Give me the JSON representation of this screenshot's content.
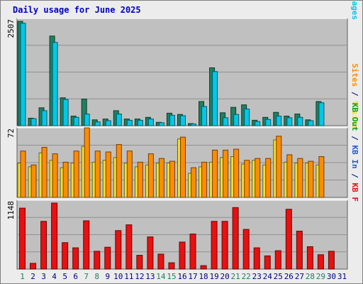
{
  "title": "Daily usage for June 2025",
  "colors": {
    "pages": "#00c8e8",
    "files": "#2090b0",
    "hits": "#208060",
    "visits": "#f0e030",
    "sites": "#ff8c00",
    "kb_in": "#2060c0",
    "kb_out": "#10a010",
    "kb_f": "#e81010",
    "weekend_day": "#208060",
    "weekday_day": "#000080",
    "panel_bg": "#c0c0c0",
    "grid": "#909090"
  },
  "chart_data": [
    {
      "type": "bar",
      "name": "hits-files-pages",
      "categories": [
        "1",
        "2",
        "3",
        "4",
        "5",
        "6",
        "7",
        "8",
        "9",
        "10",
        "11",
        "12",
        "13",
        "14",
        "15",
        "16",
        "17",
        "18",
        "19",
        "20",
        "21",
        "22",
        "23",
        "24",
        "25",
        "26",
        "27",
        "28",
        "29",
        "30",
        "31"
      ],
      "ymax_label": "2507",
      "ylim": [
        0,
        2507
      ],
      "side_label": [
        {
          "text": "Pages",
          "color_key": "pages"
        },
        {
          "text": " / ",
          "color_key": "weekday_day"
        },
        {
          "text": "Files",
          "color_key": "files"
        },
        {
          "text": " / ",
          "color_key": "weekday_day"
        },
        {
          "text": "Hits",
          "color_key": "hits"
        }
      ],
      "series": [
        {
          "name": "Hits",
          "color_key": "hits",
          "values": [
            2507,
            180,
            430,
            2153,
            670,
            230,
            640,
            140,
            160,
            360,
            160,
            160,
            200,
            80,
            300,
            270,
            50,
            580,
            1390,
            310,
            440,
            500,
            130,
            200,
            320,
            230,
            280,
            140,
            580,
            0,
            0
          ]
        },
        {
          "name": "Pages",
          "color_key": "pages",
          "values": [
            2460,
            170,
            360,
            2000,
            630,
            200,
            280,
            90,
            120,
            280,
            130,
            130,
            160,
            70,
            250,
            240,
            40,
            460,
            1300,
            190,
            270,
            400,
            100,
            150,
            230,
            190,
            200,
            120,
            550,
            0,
            0
          ]
        }
      ]
    },
    {
      "type": "bar",
      "name": "visits-sites",
      "categories": [
        "1",
        "2",
        "3",
        "4",
        "5",
        "6",
        "7",
        "8",
        "9",
        "10",
        "11",
        "12",
        "13",
        "14",
        "15",
        "16",
        "17",
        "18",
        "19",
        "20",
        "21",
        "22",
        "23",
        "24",
        "25",
        "26",
        "27",
        "28",
        "29",
        "30",
        "31"
      ],
      "ymax_label": "72",
      "ylim": [
        0,
        72
      ],
      "side_label": [
        {
          "text": "Visits",
          "color_key": "visits"
        },
        {
          "text": " / ",
          "color_key": "weekday_day"
        },
        {
          "text": "Sites",
          "color_key": "sites"
        }
      ],
      "series": [
        {
          "name": "Visits",
          "color_key": "visits",
          "values": [
            37,
            33,
            48,
            40,
            32,
            37,
            55,
            38,
            40,
            43,
            37,
            33,
            35,
            37,
            37,
            63,
            26,
            33,
            38,
            43,
            44,
            36,
            40,
            35,
            62,
            38,
            37,
            37,
            35,
            0,
            0
          ]
        },
        {
          "name": "Sites",
          "color_key": "sites",
          "values": [
            50,
            35,
            54,
            47,
            38,
            50,
            75,
            50,
            49,
            57,
            50,
            38,
            47,
            42,
            39,
            65,
            32,
            38,
            51,
            51,
            52,
            40,
            42,
            42,
            66,
            46,
            42,
            39,
            44,
            0,
            0
          ]
        }
      ]
    },
    {
      "type": "bar",
      "name": "kbf-kbin-kbout",
      "categories": [
        "1",
        "2",
        "3",
        "4",
        "5",
        "6",
        "7",
        "8",
        "9",
        "10",
        "11",
        "12",
        "13",
        "14",
        "15",
        "16",
        "17",
        "18",
        "19",
        "20",
        "21",
        "22",
        "23",
        "24",
        "25",
        "26",
        "27",
        "28",
        "29",
        "30",
        "31"
      ],
      "ymax_label": "1148",
      "ylim": [
        0,
        1148
      ],
      "side_label": [
        {
          "text": "KB F",
          "color_key": "kb_f"
        },
        {
          "text": " / ",
          "color_key": "weekday_day"
        },
        {
          "text": "KB In",
          "color_key": "kb_in"
        },
        {
          "text": " / ",
          "color_key": "weekday_day"
        },
        {
          "text": "KB Out",
          "color_key": "kb_out"
        }
      ],
      "series": [
        {
          "name": "KB F",
          "color_key": "kb_f",
          "values": [
            1060,
            100,
            830,
            1148,
            460,
            370,
            840,
            310,
            380,
            670,
            770,
            240,
            560,
            260,
            110,
            470,
            610,
            60,
            830,
            830,
            1070,
            690,
            370,
            230,
            320,
            1040,
            660,
            390,
            250,
            310,
            0
          ]
        }
      ]
    }
  ],
  "days": [
    {
      "label": "1",
      "weekend": true
    },
    {
      "label": "2",
      "weekend": false
    },
    {
      "label": "3",
      "weekend": false
    },
    {
      "label": "4",
      "weekend": false
    },
    {
      "label": "5",
      "weekend": false
    },
    {
      "label": "6",
      "weekend": false
    },
    {
      "label": "7",
      "weekend": true
    },
    {
      "label": "8",
      "weekend": true
    },
    {
      "label": "9",
      "weekend": false
    },
    {
      "label": "10",
      "weekend": false
    },
    {
      "label": "11",
      "weekend": false
    },
    {
      "label": "12",
      "weekend": false
    },
    {
      "label": "13",
      "weekend": false
    },
    {
      "label": "14",
      "weekend": true
    },
    {
      "label": "15",
      "weekend": true
    },
    {
      "label": "16",
      "weekend": false
    },
    {
      "label": "17",
      "weekend": false
    },
    {
      "label": "18",
      "weekend": false
    },
    {
      "label": "19",
      "weekend": false
    },
    {
      "label": "20",
      "weekend": false
    },
    {
      "label": "21",
      "weekend": true
    },
    {
      "label": "22",
      "weekend": true
    },
    {
      "label": "23",
      "weekend": false
    },
    {
      "label": "24",
      "weekend": false
    },
    {
      "label": "25",
      "weekend": false
    },
    {
      "label": "26",
      "weekend": false
    },
    {
      "label": "27",
      "weekend": false
    },
    {
      "label": "28",
      "weekend": true
    },
    {
      "label": "29",
      "weekend": true
    },
    {
      "label": "30",
      "weekend": false
    },
    {
      "label": "31",
      "weekend": false
    }
  ]
}
